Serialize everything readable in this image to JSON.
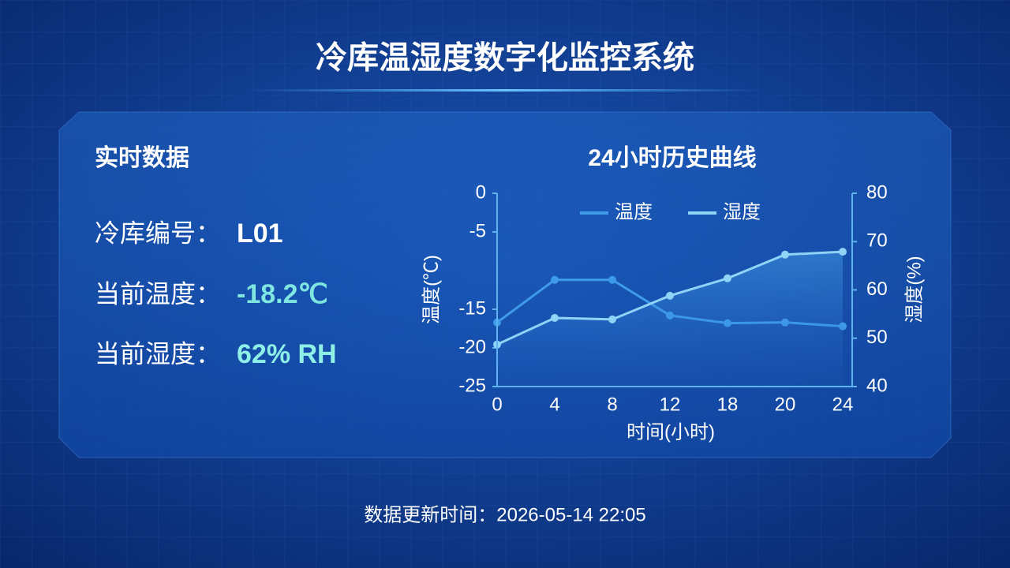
{
  "header": {
    "title": "冷库温湿度数字化监控系统"
  },
  "realtime": {
    "title": "实时数据",
    "items": [
      {
        "label": "冷库编号：",
        "value": "L01"
      },
      {
        "label": "当前温度：",
        "value": "-18.2℃"
      },
      {
        "label": "当前湿度：",
        "value": "62% RH"
      }
    ]
  },
  "chart_data": {
    "type": "line",
    "title": "24小时历史曲线",
    "x_label": "时间(小时)",
    "y_label": "温度(℃)",
    "y2_label": "湿度(%)",
    "categories": [
      "0",
      "4",
      "8",
      "12",
      "18",
      "20",
      "24"
    ],
    "series": [
      {
        "name": "温度",
        "color": "#3d9be8",
        "values": [
          -16.7,
          -11.2,
          -11.2,
          -15.8,
          -16.8,
          -16.7,
          -17.2
        ]
      },
      {
        "name": "湿度",
        "color": "#8fd3f7",
        "axis": "y2",
        "values": [
          48.7,
          54.2,
          53.9,
          58.8,
          62.4,
          67.3,
          67.9
        ]
      }
    ],
    "ylim": [
      -25,
      0
    ],
    "yticks": [
      0,
      -5,
      -15,
      -20,
      -25
    ],
    "y2lim": [
      40,
      80
    ],
    "y2ticks": [
      80,
      70,
      60,
      50,
      40
    ],
    "legend": "top"
  },
  "footer": {
    "updated": "数据更新时间：2026-05-14 22:05"
  }
}
